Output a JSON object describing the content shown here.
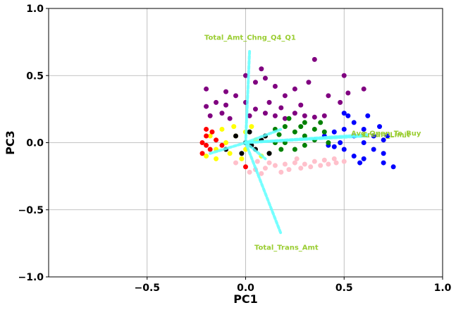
{
  "chart_data": {
    "type": "scatter",
    "title": "",
    "xlabel": "PC1",
    "ylabel": "PC3",
    "xlim": [
      -1.0,
      1.0
    ],
    "ylim": [
      -1.0,
      1.0
    ],
    "xticks": [
      -0.5,
      0.0,
      0.5,
      1.0
    ],
    "yticks": [
      -1.0,
      -0.5,
      0.0,
      0.5,
      1.0
    ],
    "xtick_labels": [
      "−0.5",
      "0.0",
      "0.5",
      "1.0"
    ],
    "ytick_labels": [
      "−1.0",
      "−0.5",
      "0.0",
      "0.5",
      "1.0"
    ],
    "grid": true,
    "legend": "none",
    "series": [
      {
        "color": "#ffc0cb",
        "points": [
          [
            0.0,
            -0.18
          ],
          [
            0.05,
            -0.2
          ],
          [
            0.1,
            -0.19
          ],
          [
            0.15,
            -0.17
          ],
          [
            0.2,
            -0.16
          ],
          [
            0.25,
            -0.15
          ],
          [
            0.3,
            -0.16
          ],
          [
            0.35,
            -0.14
          ],
          [
            0.4,
            -0.13
          ],
          [
            0.45,
            -0.12
          ],
          [
            0.5,
            -0.14
          ],
          [
            0.02,
            -0.22
          ],
          [
            0.08,
            -0.23
          ],
          [
            0.12,
            -0.15
          ],
          [
            0.18,
            -0.22
          ],
          [
            0.22,
            -0.2
          ],
          [
            0.28,
            -0.19
          ],
          [
            0.33,
            -0.18
          ],
          [
            0.38,
            -0.17
          ],
          [
            0.42,
            -0.16
          ],
          [
            -0.05,
            -0.15
          ],
          [
            0.06,
            -0.14
          ],
          [
            0.26,
            -0.12
          ],
          [
            0.46,
            -0.15
          ]
        ]
      },
      {
        "color": "#800080",
        "points": [
          [
            -0.2,
            0.27
          ],
          [
            -0.2,
            0.4
          ],
          [
            -0.15,
            0.3
          ],
          [
            -0.1,
            0.28
          ],
          [
            -0.05,
            0.35
          ],
          [
            0.0,
            0.3
          ],
          [
            0.05,
            0.25
          ],
          [
            0.1,
            0.22
          ],
          [
            0.15,
            0.2
          ],
          [
            0.2,
            0.18
          ],
          [
            0.25,
            0.22
          ],
          [
            0.3,
            0.2
          ],
          [
            0.35,
            0.19
          ],
          [
            0.4,
            0.2
          ],
          [
            0.05,
            0.45
          ],
          [
            0.08,
            0.55
          ],
          [
            0.0,
            0.5
          ],
          [
            0.1,
            0.48
          ],
          [
            0.15,
            0.42
          ],
          [
            0.2,
            0.35
          ],
          [
            0.35,
            0.62
          ],
          [
            0.32,
            0.45
          ],
          [
            0.25,
            0.4
          ],
          [
            -0.1,
            0.38
          ],
          [
            -0.12,
            0.22
          ],
          [
            -0.18,
            0.2
          ],
          [
            -0.08,
            0.18
          ],
          [
            0.02,
            0.2
          ],
          [
            0.12,
            0.3
          ],
          [
            0.28,
            0.28
          ],
          [
            0.5,
            0.5
          ],
          [
            0.52,
            0.37
          ],
          [
            0.48,
            0.3
          ],
          [
            0.6,
            0.4
          ],
          [
            0.42,
            0.35
          ],
          [
            0.18,
            0.26
          ]
        ]
      },
      {
        "color": "#0000ff",
        "points": [
          [
            0.4,
            0.05
          ],
          [
            0.45,
            0.08
          ],
          [
            0.5,
            0.1
          ],
          [
            0.55,
            0.05
          ],
          [
            0.6,
            0.0
          ],
          [
            0.65,
            -0.05
          ],
          [
            0.7,
            -0.08
          ],
          [
            0.75,
            -0.18
          ],
          [
            0.7,
            -0.15
          ],
          [
            0.6,
            -0.12
          ],
          [
            0.55,
            -0.1
          ],
          [
            0.5,
            -0.05
          ],
          [
            0.45,
            -0.03
          ],
          [
            0.65,
            0.05
          ],
          [
            0.7,
            0.02
          ],
          [
            0.6,
            0.1
          ],
          [
            0.55,
            0.15
          ],
          [
            0.52,
            0.2
          ],
          [
            0.5,
            0.22
          ],
          [
            0.62,
            0.2
          ],
          [
            0.68,
            0.12
          ],
          [
            0.72,
            0.05
          ],
          [
            0.58,
            -0.15
          ],
          [
            0.48,
            0.0
          ],
          [
            0.42,
            -0.02
          ]
        ]
      },
      {
        "color": "#008000",
        "points": [
          [
            0.1,
            0.05
          ],
          [
            0.15,
            0.1
          ],
          [
            0.2,
            0.12
          ],
          [
            0.25,
            0.08
          ],
          [
            0.3,
            0.05
          ],
          [
            0.35,
            0.1
          ],
          [
            0.4,
            0.08
          ],
          [
            0.2,
            0.0
          ],
          [
            0.25,
            -0.05
          ],
          [
            0.3,
            -0.02
          ],
          [
            0.15,
            0.0
          ],
          [
            0.35,
            0.02
          ],
          [
            0.3,
            0.15
          ],
          [
            0.22,
            0.18
          ],
          [
            0.18,
            -0.05
          ],
          [
            0.28,
            0.12
          ],
          [
            0.38,
            0.15
          ],
          [
            0.12,
            -0.08
          ],
          [
            0.42,
            0.0
          ],
          [
            0.17,
            0.06
          ]
        ]
      },
      {
        "color": "#ffff00",
        "points": [
          [
            -0.2,
            -0.1
          ],
          [
            -0.15,
            -0.05
          ],
          [
            -0.1,
            0.0
          ],
          [
            -0.05,
            0.05
          ],
          [
            0.0,
            0.08
          ],
          [
            -0.12,
            0.1
          ],
          [
            -0.08,
            -0.08
          ],
          [
            0.0,
            -0.05
          ],
          [
            0.05,
            0.02
          ],
          [
            -0.18,
            0.05
          ],
          [
            -0.02,
            -0.12
          ],
          [
            0.08,
            -0.1
          ],
          [
            -0.15,
            -0.12
          ],
          [
            0.03,
            0.12
          ],
          [
            -0.06,
            0.12
          ]
        ]
      },
      {
        "color": "#ff0000",
        "points": [
          [
            -0.22,
            0.0
          ],
          [
            -0.2,
            0.05
          ],
          [
            -0.18,
            -0.05
          ],
          [
            -0.2,
            0.1
          ],
          [
            -0.15,
            0.02
          ],
          [
            -0.22,
            -0.08
          ],
          [
            -0.17,
            0.08
          ],
          [
            -0.12,
            -0.02
          ],
          [
            -0.2,
            -0.02
          ],
          [
            0.0,
            -0.18
          ]
        ]
      },
      {
        "color": "#000000",
        "points": [
          [
            -0.05,
            0.05
          ],
          [
            0.0,
            0.0
          ],
          [
            0.05,
            -0.05
          ],
          [
            0.1,
            0.05
          ],
          [
            -0.1,
            -0.05
          ],
          [
            0.12,
            -0.08
          ],
          [
            0.08,
            0.02
          ],
          [
            -0.02,
            -0.08
          ],
          [
            0.02,
            0.08
          ],
          [
            0.03,
            -0.02
          ]
        ]
      }
    ],
    "vectors": [
      {
        "label": "Total_Amt_Chng_Q4_Q1",
        "x": 0.02,
        "y": 0.68
      },
      {
        "label": "Total_Trans_Amt",
        "x": 0.18,
        "y": -0.68
      },
      {
        "label": "Avg_Open_To_Buy",
        "x": 0.62,
        "y": 0.06
      },
      {
        "label": "Credit_Limit",
        "x": 0.62,
        "y": 0.05
      },
      {
        "label": "",
        "x": 0.18,
        "y": 0.1
      },
      {
        "label": "",
        "x": -0.18,
        "y": -0.08
      },
      {
        "label": "",
        "x": 0.1,
        "y": -0.12
      }
    ],
    "vector_color": "#5fffff",
    "vector_label_color": "#9acd32"
  }
}
